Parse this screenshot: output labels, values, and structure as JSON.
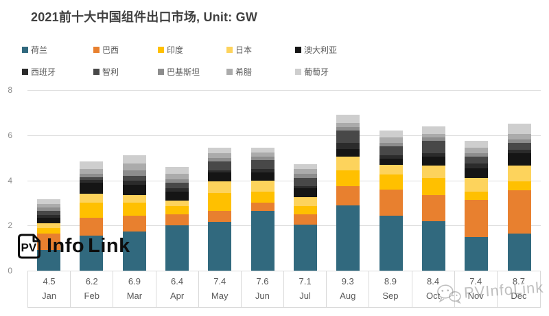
{
  "title": "2021前十大中国组件出口市场, Unit: GW",
  "logo": {
    "badge": "PV",
    "name_part1": "Info",
    "name_part2": "Link"
  },
  "watermark": {
    "text": "PVInfoLink",
    "icon": "wechat-icon"
  },
  "chart_data": {
    "type": "bar",
    "stacked": true,
    "title": "2021前十大中国组件出口市场, Unit: GW",
    "unit": "GW",
    "xlabel": "",
    "ylabel": "GW",
    "ylim": [
      0,
      8
    ],
    "yticks": [
      0,
      2,
      4,
      6,
      8
    ],
    "grid": true,
    "legend_position": "top",
    "categories": [
      "Jan",
      "Feb",
      "Mar",
      "Apr",
      "May",
      "Jun",
      "Jul",
      "Aug",
      "Sep",
      "Oct",
      "Nov",
      "Dec"
    ],
    "x_value_labels": [
      "4.5",
      "6.2",
      "6.9",
      "6.4",
      "7.4",
      "7.6",
      "7.1",
      "9.3",
      "8.9",
      "8.4",
      "7.4",
      "8.7"
    ],
    "x_value_labels_meaning": "total monthly module exports shown under each month (GW)",
    "series": [
      {
        "key": "netherlands",
        "name": "荷兰",
        "color": "#31697e",
        "values": [
          0.9,
          1.55,
          1.75,
          2.0,
          2.15,
          2.65,
          2.05,
          2.9,
          2.45,
          2.2,
          1.5,
          1.65
        ]
      },
      {
        "key": "brazil",
        "name": "巴西",
        "color": "#e8802f",
        "values": [
          0.75,
          0.8,
          0.7,
          0.5,
          0.5,
          0.35,
          0.45,
          0.85,
          1.15,
          1.15,
          1.65,
          1.9
        ]
      },
      {
        "key": "india",
        "name": "印度",
        "color": "#ffc000",
        "values": [
          0.25,
          0.65,
          0.55,
          0.35,
          0.8,
          0.5,
          0.35,
          0.7,
          0.65,
          0.75,
          0.35,
          0.4
        ]
      },
      {
        "key": "japan",
        "name": "日本",
        "color": "#fdd35c",
        "values": [
          0.2,
          0.4,
          0.35,
          0.25,
          0.5,
          0.5,
          0.4,
          0.6,
          0.45,
          0.55,
          0.6,
          0.7
        ]
      },
      {
        "key": "australia",
        "name": "澳大利亚",
        "color": "#151515",
        "values": [
          0.25,
          0.5,
          0.45,
          0.4,
          0.4,
          0.35,
          0.4,
          0.35,
          0.25,
          0.4,
          0.45,
          0.55
        ]
      },
      {
        "key": "spain",
        "name": "西班牙",
        "color": "#2b2b2b",
        "values": [
          0.1,
          0.1,
          0.2,
          0.15,
          0.1,
          0.15,
          0.1,
          0.25,
          0.15,
          0.15,
          0.2,
          0.15
        ]
      },
      {
        "key": "chile",
        "name": "智利",
        "color": "#484848",
        "values": [
          0.2,
          0.15,
          0.2,
          0.25,
          0.4,
          0.4,
          0.35,
          0.55,
          0.4,
          0.55,
          0.3,
          0.3
        ]
      },
      {
        "key": "pakistan",
        "name": "巴基斯坦",
        "color": "#8d8d8d",
        "values": [
          0.15,
          0.15,
          0.25,
          0.15,
          0.15,
          0.15,
          0.2,
          0.15,
          0.15,
          0.15,
          0.15,
          0.15
        ]
      },
      {
        "key": "greece",
        "name": "希腊",
        "color": "#ababab",
        "values": [
          0.15,
          0.2,
          0.3,
          0.25,
          0.2,
          0.2,
          0.2,
          0.2,
          0.25,
          0.15,
          0.25,
          0.25
        ]
      },
      {
        "key": "portugal",
        "name": "葡萄牙",
        "color": "#cecece",
        "values": [
          0.2,
          0.35,
          0.35,
          0.3,
          0.25,
          0.2,
          0.2,
          0.35,
          0.3,
          0.35,
          0.3,
          0.45
        ]
      }
    ]
  }
}
